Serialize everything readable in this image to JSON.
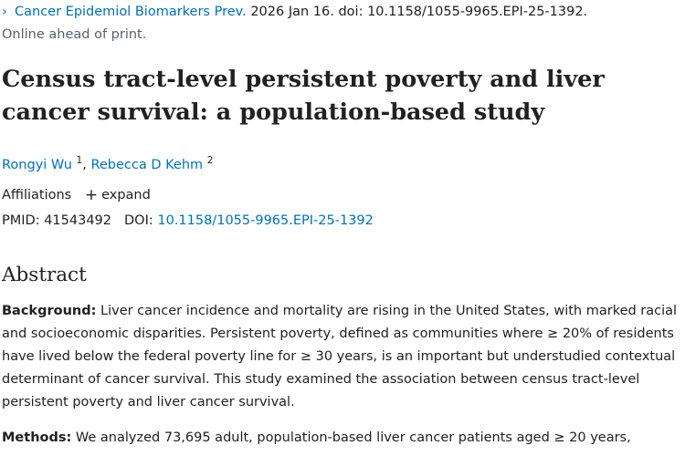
{
  "citation": {
    "journal": "Cancer Epidemiol Biomarkers Prev.",
    "date_doi": "2026 Jan 16. doi: 10.1158/1055-9965.EPI-25-1392.",
    "status": "Online ahead of print."
  },
  "article": {
    "title": "Census tract-level persistent poverty and liver cancer survival: a population-based study"
  },
  "authors": [
    {
      "name": "Rongyi Wu",
      "affil": "1"
    },
    {
      "name": "Rebecca D Kehm",
      "affil": "2"
    }
  ],
  "affiliations": {
    "label": "Affiliations",
    "expand_label": "expand",
    "expand_icon": "plus-icon"
  },
  "identifiers": {
    "pmid_label": "PMID:",
    "pmid": "41543492",
    "doi_label": "DOI:",
    "doi": "10.1158/1055-9965.EPI-25-1392"
  },
  "abstract": {
    "heading": "Abstract",
    "background_label": "Background:",
    "background_text": "Liver cancer incidence and mortality are rising in the United States, with marked racial and socioeconomic disparities. Persistent poverty, defined as communities where ≥ 20% of residents have lived below the federal poverty line for ≥ 30 years, is an important but understudied contextual determinant of cancer survival. This study examined the association between census tract-level persistent poverty and liver cancer survival.",
    "methods_label": "Methods:",
    "methods_text": "We analyzed 73,695 adult, population-based liver cancer patients aged ≥ 20 years,"
  },
  "colors": {
    "link": "#0071bc",
    "text": "#212121",
    "muted": "#5b616b"
  }
}
